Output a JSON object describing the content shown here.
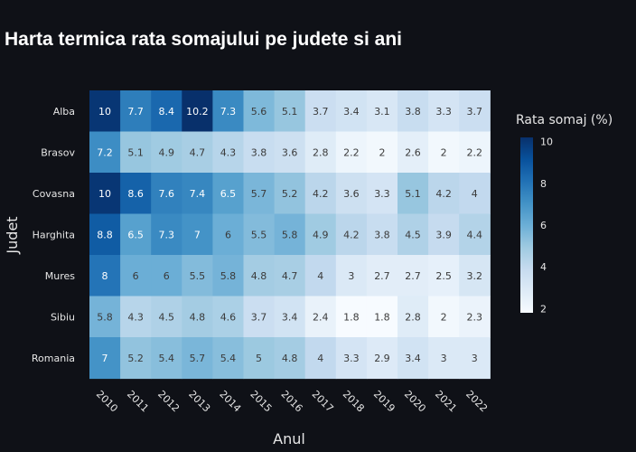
{
  "chart_data": {
    "type": "heatmap",
    "title": "Harta termica rata somajului pe judete si ani",
    "xlabel": "Anul",
    "ylabel": "Judet",
    "x": [
      "2010",
      "2011",
      "2012",
      "2013",
      "2014",
      "2015",
      "2016",
      "2017",
      "2018",
      "2019",
      "2020",
      "2021",
      "2022"
    ],
    "y": [
      "Alba",
      "Brasov",
      "Covasna",
      "Harghita",
      "Mures",
      "Sibiu",
      "Romania"
    ],
    "z": [
      [
        10,
        7.7,
        8.4,
        10.2,
        7.3,
        5.6,
        5.1,
        3.7,
        3.4,
        3.1,
        3.8,
        3.3,
        3.7
      ],
      [
        7.2,
        5.1,
        4.9,
        4.7,
        4.3,
        3.8,
        3.6,
        2.8,
        2.2,
        2,
        2.6,
        2,
        2.2
      ],
      [
        10,
        8.6,
        7.6,
        7.4,
        6.5,
        5.7,
        5.2,
        4.2,
        3.6,
        3.3,
        5.1,
        4.2,
        4
      ],
      [
        8.8,
        6.5,
        7.3,
        7,
        6,
        5.5,
        5.8,
        4.9,
        4.2,
        3.8,
        4.5,
        3.9,
        4.4
      ],
      [
        8,
        6,
        6,
        5.5,
        5.8,
        4.8,
        4.7,
        4,
        3,
        2.7,
        2.7,
        2.5,
        3.2
      ],
      [
        5.8,
        4.3,
        4.5,
        4.8,
        4.6,
        3.7,
        3.4,
        2.4,
        1.8,
        1.8,
        2.8,
        2,
        2.3
      ],
      [
        7,
        5.2,
        5.4,
        5.7,
        5.4,
        5,
        4.8,
        4,
        3.3,
        2.9,
        3.4,
        3,
        3
      ]
    ],
    "colorscale": "Blues",
    "colorbar": {
      "title": "Rata somaj (%)",
      "ticks": [
        "2",
        "4",
        "6",
        "8",
        "10"
      ],
      "range": [
        1.8,
        10.2
      ]
    },
    "grid": false
  }
}
